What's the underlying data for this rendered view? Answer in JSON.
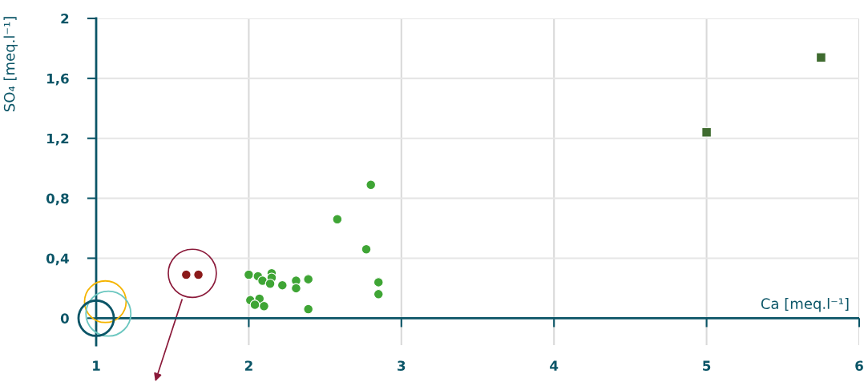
{
  "chart_data": {
    "type": "scatter",
    "xlabel": "Ca [meq.l⁻¹]",
    "ylabel": "SO₄ [meq.l⁻¹]",
    "xlim": [
      1,
      6
    ],
    "xticks": [
      1,
      2,
      3,
      4,
      5,
      6
    ],
    "ylim": [
      -0.18,
      2
    ],
    "yticks": [
      {
        "value": 0,
        "label": "0"
      },
      {
        "value": 0.4,
        "label": "0,4"
      },
      {
        "value": 0.8,
        "label": "0,8"
      },
      {
        "value": 1.2,
        "label": "1,2"
      },
      {
        "value": 1.6,
        "label": "1,6"
      },
      {
        "value": 2,
        "label": "2"
      }
    ],
    "grid": true,
    "marker": "circle",
    "ref_lines": [
      {
        "axis": "y",
        "value": 0,
        "color": "#0b5567"
      }
    ],
    "series": [
      {
        "color": "#3fa535",
        "x": [
          2.0,
          2.06,
          2.09,
          2.15,
          2.15,
          2.14,
          2.22,
          2.31,
          2.31,
          2.39,
          2.01,
          2.07,
          2.04,
          2.1,
          2.39,
          2.58,
          2.8,
          2.77,
          2.85,
          2.85
        ],
        "values": [
          0.29,
          0.28,
          0.25,
          0.3,
          0.27,
          0.23,
          0.22,
          0.25,
          0.2,
          0.26,
          0.12,
          0.13,
          0.09,
          0.08,
          0.06,
          0.66,
          0.89,
          0.46,
          0.24,
          0.16
        ]
      },
      {
        "color": "#3f6b2f",
        "marker": "square",
        "x": [
          5.0,
          5.75
        ],
        "values": [
          1.24,
          1.74
        ]
      },
      {
        "color": "#8b1a1a",
        "x": [
          1.59,
          1.67
        ],
        "values": [
          0.29,
          0.29
        ]
      },
      {
        "type": "bubble",
        "color": "#f5b400",
        "x": [
          1.06
        ],
        "values": [
          0.11
        ],
        "sizes": [
          0.86
        ]
      },
      {
        "type": "bubble",
        "color": "#6cc7c0",
        "x": [
          1.08
        ],
        "values": [
          0.03
        ],
        "sizes": [
          1
        ]
      },
      {
        "type": "bubble",
        "color": "#0b5567",
        "x": [
          1.0
        ],
        "values": [
          0.0
        ],
        "sizes": [
          0.62
        ]
      }
    ]
  }
}
